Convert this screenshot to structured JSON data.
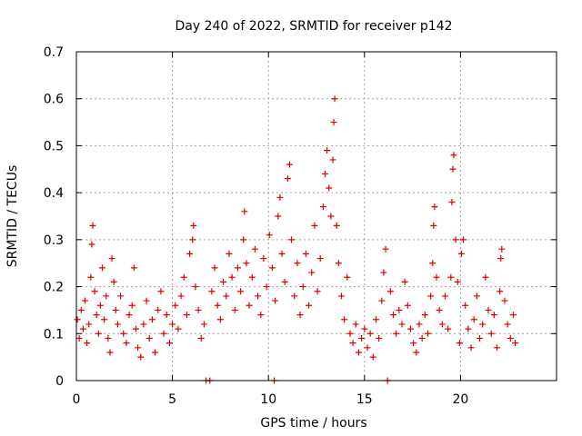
{
  "chart_data": {
    "type": "scatter",
    "title": "Day 240 of 2022, SRMTID for receiver p142",
    "xlabel": "GPS time / hours",
    "ylabel": "SRMTID / TECUs",
    "xlim": [
      0,
      25
    ],
    "ylim": [
      0,
      0.7
    ],
    "x_ticks": [
      0,
      5,
      10,
      15,
      20
    ],
    "x_tick_labels": [
      "0",
      "5",
      "10",
      "15",
      "20"
    ],
    "y_ticks": [
      0,
      0.1,
      0.2,
      0.3,
      0.4,
      0.5,
      0.6,
      0.7
    ],
    "y_tick_labels": [
      "0",
      "0.1",
      "0.2",
      "0.3",
      "0.4",
      "0.5",
      "0.6",
      "0.7"
    ],
    "grid": true,
    "marker": "+",
    "color": "#e00000",
    "series": [
      {
        "name": "SRMTID",
        "points": [
          [
            0.05,
            0.13
          ],
          [
            0.15,
            0.09
          ],
          [
            0.25,
            0.15
          ],
          [
            0.35,
            0.11
          ],
          [
            0.45,
            0.17
          ],
          [
            0.55,
            0.08
          ],
          [
            0.65,
            0.12
          ],
          [
            0.75,
            0.22
          ],
          [
            0.8,
            0.29
          ],
          [
            0.85,
            0.33
          ],
          [
            0.95,
            0.19
          ],
          [
            1.05,
            0.14
          ],
          [
            1.15,
            0.1
          ],
          [
            1.25,
            0.16
          ],
          [
            1.35,
            0.24
          ],
          [
            1.45,
            0.13
          ],
          [
            1.55,
            0.18
          ],
          [
            1.65,
            0.09
          ],
          [
            1.75,
            0.06
          ],
          [
            1.85,
            0.26
          ],
          [
            1.95,
            0.21
          ],
          [
            2.05,
            0.15
          ],
          [
            2.15,
            0.12
          ],
          [
            2.3,
            0.18
          ],
          [
            2.45,
            0.1
          ],
          [
            2.6,
            0.08
          ],
          [
            2.75,
            0.14
          ],
          [
            2.9,
            0.16
          ],
          [
            3.0,
            0.24
          ],
          [
            3.1,
            0.11
          ],
          [
            3.2,
            0.07
          ],
          [
            3.35,
            0.05
          ],
          [
            3.5,
            0.12
          ],
          [
            3.65,
            0.17
          ],
          [
            3.8,
            0.09
          ],
          [
            3.95,
            0.13
          ],
          [
            4.1,
            0.06
          ],
          [
            4.25,
            0.15
          ],
          [
            4.4,
            0.19
          ],
          [
            4.55,
            0.1
          ],
          [
            4.7,
            0.14
          ],
          [
            4.85,
            0.08
          ],
          [
            5.0,
            0.12
          ],
          [
            5.15,
            0.16
          ],
          [
            5.3,
            0.11
          ],
          [
            5.45,
            0.18
          ],
          [
            5.6,
            0.22
          ],
          [
            5.75,
            0.14
          ],
          [
            5.9,
            0.27
          ],
          [
            6.05,
            0.3
          ],
          [
            6.1,
            0.33
          ],
          [
            6.2,
            0.2
          ],
          [
            6.35,
            0.15
          ],
          [
            6.5,
            0.09
          ],
          [
            6.65,
            0.12
          ],
          [
            6.75,
            0.0
          ],
          [
            6.95,
            0.0
          ],
          [
            7.05,
            0.19
          ],
          [
            7.2,
            0.24
          ],
          [
            7.35,
            0.16
          ],
          [
            7.5,
            0.13
          ],
          [
            7.65,
            0.21
          ],
          [
            7.8,
            0.18
          ],
          [
            7.95,
            0.27
          ],
          [
            8.1,
            0.22
          ],
          [
            8.25,
            0.15
          ],
          [
            8.4,
            0.24
          ],
          [
            8.55,
            0.19
          ],
          [
            8.7,
            0.3
          ],
          [
            8.75,
            0.36
          ],
          [
            8.85,
            0.25
          ],
          [
            9.0,
            0.16
          ],
          [
            9.15,
            0.22
          ],
          [
            9.3,
            0.28
          ],
          [
            9.45,
            0.18
          ],
          [
            9.6,
            0.14
          ],
          [
            9.75,
            0.26
          ],
          [
            9.9,
            0.2
          ],
          [
            10.05,
            0.31
          ],
          [
            10.2,
            0.24
          ],
          [
            10.3,
            0.0
          ],
          [
            10.35,
            0.17
          ],
          [
            10.5,
            0.35
          ],
          [
            10.6,
            0.39
          ],
          [
            10.7,
            0.27
          ],
          [
            10.85,
            0.21
          ],
          [
            11.0,
            0.43
          ],
          [
            11.1,
            0.46
          ],
          [
            11.2,
            0.3
          ],
          [
            11.35,
            0.18
          ],
          [
            11.5,
            0.25
          ],
          [
            11.65,
            0.14
          ],
          [
            11.8,
            0.2
          ],
          [
            11.95,
            0.27
          ],
          [
            12.1,
            0.16
          ],
          [
            12.25,
            0.23
          ],
          [
            12.4,
            0.33
          ],
          [
            12.55,
            0.19
          ],
          [
            12.7,
            0.26
          ],
          [
            12.85,
            0.37
          ],
          [
            12.95,
            0.44
          ],
          [
            13.05,
            0.49
          ],
          [
            13.15,
            0.41
          ],
          [
            13.25,
            0.35
          ],
          [
            13.35,
            0.47
          ],
          [
            13.4,
            0.55
          ],
          [
            13.45,
            0.6
          ],
          [
            13.55,
            0.33
          ],
          [
            13.65,
            0.25
          ],
          [
            13.8,
            0.18
          ],
          [
            13.95,
            0.13
          ],
          [
            14.1,
            0.22
          ],
          [
            14.25,
            0.1
          ],
          [
            14.4,
            0.08
          ],
          [
            14.55,
            0.12
          ],
          [
            14.7,
            0.06
          ],
          [
            14.85,
            0.09
          ],
          [
            15.0,
            0.11
          ],
          [
            15.15,
            0.07
          ],
          [
            15.3,
            0.1
          ],
          [
            15.45,
            0.05
          ],
          [
            15.6,
            0.13
          ],
          [
            15.75,
            0.09
          ],
          [
            15.9,
            0.17
          ],
          [
            16.0,
            0.23
          ],
          [
            16.1,
            0.28
          ],
          [
            16.2,
            0.0
          ],
          [
            16.35,
            0.19
          ],
          [
            16.5,
            0.14
          ],
          [
            16.65,
            0.1
          ],
          [
            16.8,
            0.15
          ],
          [
            16.95,
            0.12
          ],
          [
            17.1,
            0.21
          ],
          [
            17.25,
            0.16
          ],
          [
            17.4,
            0.11
          ],
          [
            17.55,
            0.08
          ],
          [
            17.7,
            0.06
          ],
          [
            17.85,
            0.12
          ],
          [
            18.0,
            0.09
          ],
          [
            18.15,
            0.14
          ],
          [
            18.3,
            0.1
          ],
          [
            18.45,
            0.18
          ],
          [
            18.55,
            0.25
          ],
          [
            18.6,
            0.33
          ],
          [
            18.65,
            0.37
          ],
          [
            18.75,
            0.22
          ],
          [
            18.9,
            0.15
          ],
          [
            19.05,
            0.12
          ],
          [
            19.2,
            0.18
          ],
          [
            19.35,
            0.11
          ],
          [
            19.5,
            0.22
          ],
          [
            19.55,
            0.38
          ],
          [
            19.6,
            0.45
          ],
          [
            19.65,
            0.48
          ],
          [
            19.75,
            0.3
          ],
          [
            19.85,
            0.21
          ],
          [
            19.95,
            0.08
          ],
          [
            20.05,
            0.27
          ],
          [
            20.15,
            0.3
          ],
          [
            20.25,
            0.16
          ],
          [
            20.4,
            0.11
          ],
          [
            20.55,
            0.07
          ],
          [
            20.7,
            0.13
          ],
          [
            20.85,
            0.18
          ],
          [
            21.0,
            0.09
          ],
          [
            21.15,
            0.12
          ],
          [
            21.3,
            0.22
          ],
          [
            21.45,
            0.15
          ],
          [
            21.6,
            0.1
          ],
          [
            21.75,
            0.14
          ],
          [
            21.9,
            0.07
          ],
          [
            22.05,
            0.19
          ],
          [
            22.1,
            0.26
          ],
          [
            22.15,
            0.28
          ],
          [
            22.3,
            0.17
          ],
          [
            22.45,
            0.12
          ],
          [
            22.6,
            0.09
          ],
          [
            22.75,
            0.14
          ],
          [
            22.85,
            0.08
          ]
        ]
      }
    ]
  }
}
